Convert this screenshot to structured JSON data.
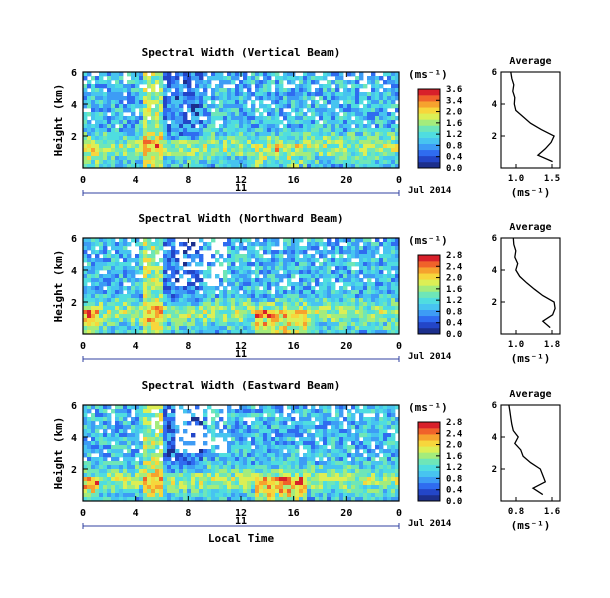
{
  "chart_data": [
    {
      "type": "heatmap",
      "title": "Spectral Width (Vertical Beam)",
      "ylabel": "Height (km)",
      "yticks": [
        "6",
        "4",
        "2"
      ],
      "ylim": [
        0,
        6
      ],
      "xticks": [
        "0",
        "4",
        "8",
        "12",
        "16",
        "20",
        "0"
      ],
      "xlim": [
        0,
        24
      ],
      "date_day": "11",
      "date_label": "Jul 2014",
      "colorbar": {
        "unit": "(ms⁻¹)",
        "ticks": [
          "3.6",
          "3.4",
          "2.0",
          "1.6",
          "1.2",
          "0.8",
          "0.4",
          "0.0"
        ]
      },
      "average": {
        "title": "Average",
        "xlabel": "(ms⁻¹)",
        "xticks": [
          "1.0",
          "1.5"
        ],
        "yticks": [
          "6",
          "4",
          "2"
        ],
        "height_km": [
          0.4,
          0.8,
          1.2,
          1.6,
          2.0,
          2.4,
          2.8,
          3.2,
          3.6,
          4.0,
          4.4,
          4.8,
          5.2,
          5.6,
          6.0
        ],
        "width_ms": [
          1.75,
          1.45,
          1.6,
          1.72,
          1.78,
          1.52,
          1.3,
          1.15,
          1.0,
          0.97,
          0.98,
          0.94,
          0.96,
          0.92,
          0.9
        ]
      }
    },
    {
      "type": "heatmap",
      "title": "Spectral Width (Northward Beam)",
      "ylabel": "Height (km)",
      "yticks": [
        "6",
        "4",
        "2"
      ],
      "ylim": [
        0,
        6
      ],
      "xticks": [
        "0",
        "4",
        "8",
        "12",
        "16",
        "20",
        "0"
      ],
      "xlim": [
        0,
        24
      ],
      "date_day": "11",
      "date_label": "Jul 2014",
      "colorbar": {
        "unit": "(ms⁻¹)",
        "ticks": [
          "2.8",
          "2.4",
          "2.0",
          "1.6",
          "1.2",
          "0.8",
          "0.4",
          "0.0"
        ]
      },
      "average": {
        "title": "Average",
        "xlabel": "(ms⁻¹)",
        "xticks": [
          "1.0",
          "1.8"
        ],
        "yticks": [
          "6",
          "4",
          "2"
        ],
        "height_km": [
          0.4,
          0.8,
          1.2,
          1.6,
          2.0,
          2.4,
          2.8,
          3.2,
          3.6,
          4.0,
          4.4,
          4.8,
          5.2,
          5.6,
          6.0
        ],
        "width_ms": [
          1.7,
          1.55,
          1.75,
          1.8,
          1.78,
          1.55,
          1.38,
          1.22,
          1.08,
          1.0,
          1.04,
          0.98,
          1.0,
          0.96,
          0.95
        ]
      }
    },
    {
      "type": "heatmap",
      "title": "Spectral Width (Eastward Beam)",
      "ylabel": "Height (km)",
      "yticks": [
        "6",
        "4",
        "2"
      ],
      "ylim": [
        0,
        6
      ],
      "xticks": [
        "0",
        "4",
        "8",
        "12",
        "16",
        "20",
        "0"
      ],
      "xlim": [
        0,
        24
      ],
      "date_day": "11",
      "date_label": "Jul 2014",
      "xlabel": "Local Time",
      "colorbar": {
        "unit": "(ms⁻¹)",
        "ticks": [
          "2.8",
          "2.4",
          "2.0",
          "1.6",
          "1.2",
          "0.8",
          "0.4",
          "0.0"
        ]
      },
      "average": {
        "title": "Average",
        "xlabel": "(ms⁻¹)",
        "xticks": [
          "0.8",
          "1.6"
        ],
        "yticks": [
          "6",
          "4",
          "2"
        ],
        "height_km": [
          0.4,
          0.8,
          1.2,
          1.6,
          2.0,
          2.4,
          2.8,
          3.2,
          3.6,
          4.0,
          4.4,
          4.8,
          5.2,
          5.6,
          6.0
        ],
        "width_ms": [
          1.55,
          1.35,
          1.6,
          1.55,
          1.5,
          1.3,
          1.15,
          1.1,
          0.98,
          1.05,
          0.95,
          0.92,
          0.9,
          0.88,
          0.86
        ]
      }
    }
  ]
}
